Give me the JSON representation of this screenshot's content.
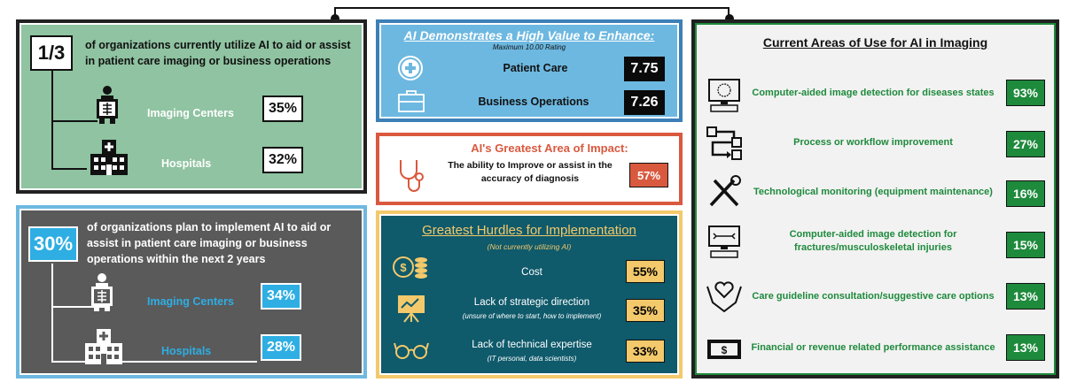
{
  "panel_current_use": {
    "fraction": "1/3",
    "text": "of organizations currently utilize AI to aid or assist in patient care imaging or business operations",
    "rows": [
      {
        "label": "Imaging Centers",
        "value": "35%"
      },
      {
        "label": "Hospitals",
        "value": "32%"
      }
    ]
  },
  "panel_plan": {
    "percent": "30%",
    "text": "of organizations plan to implement AI to aid or assist in patient care imaging or business operations within the next 2 years",
    "rows": [
      {
        "label": "Imaging Centers",
        "value": "34%"
      },
      {
        "label": "Hospitals",
        "value": "28%"
      }
    ]
  },
  "panel_value": {
    "title": "AI Demonstrates a High Value to Enhance:",
    "subtitle": "Maximum 10.00 Rating",
    "rows": [
      {
        "label": "Patient Care",
        "value": "7.75"
      },
      {
        "label": "Business Operations",
        "value": "7.26"
      }
    ]
  },
  "panel_impact": {
    "title": "AI's Greatest Area of Impact:",
    "text": "The ability to Improve or assist in the accuracy of diagnosis",
    "value": "57%"
  },
  "panel_hurdles": {
    "title": "Greatest Hurdles for Implementation",
    "subtitle": "(Not currently utilizing AI)",
    "rows": [
      {
        "label": "Cost",
        "note": "",
        "value": "55%"
      },
      {
        "label": "Lack of strategic direction",
        "note": "(unsure of where to start, how to implement)",
        "value": "35%"
      },
      {
        "label": "Lack of technical expertise",
        "note": "(IT personal, data scientists)",
        "value": "33%"
      }
    ]
  },
  "panel_areas": {
    "title": "Current Areas of Use for AI in Imaging",
    "rows": [
      {
        "label": "Computer-aided image detection for diseases states",
        "value": "93%"
      },
      {
        "label": "Process or workflow improvement",
        "value": "27%"
      },
      {
        "label": "Technological monitoring (equipment maintenance)",
        "value": "16%"
      },
      {
        "label": "Computer-aided image detection for fractures/musculoskeletal injuries",
        "value": "15%"
      },
      {
        "label": "Care guideline consultation/suggestive care options",
        "value": "13%"
      },
      {
        "label": "Financial or revenue related performance assistance",
        "value": "13%"
      }
    ]
  },
  "colors": {
    "green": "#8fc3a1",
    "dark_grey": "#5a5a5a",
    "blue": "#6db8e0",
    "red": "#d9593f",
    "teal": "#0f5a6b",
    "gold": "#f3c96b",
    "brand_green": "#1e8a3c"
  }
}
